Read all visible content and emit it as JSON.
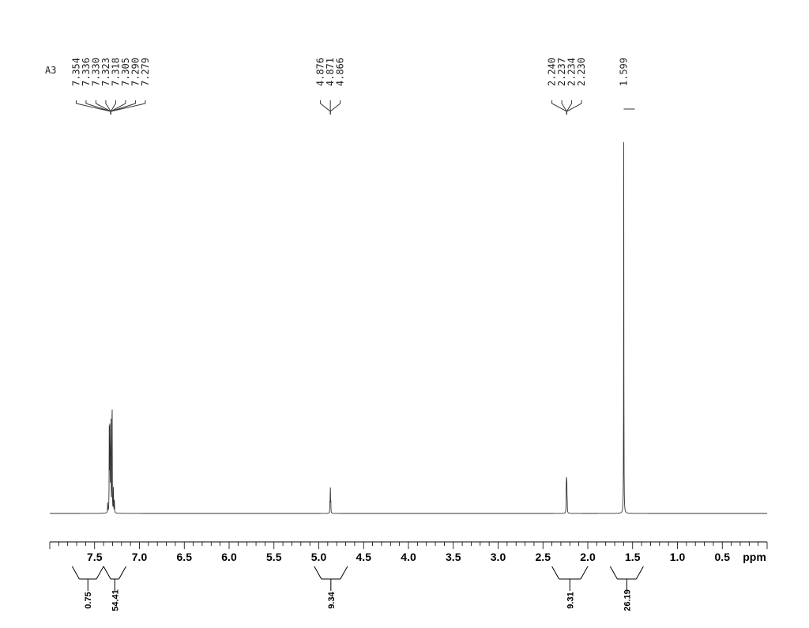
{
  "chart_data": {
    "type": "line",
    "title": "",
    "sample_label": "A3",
    "xlabel": "ppm",
    "xlim": [
      8.0,
      0.0
    ],
    "x_reversed": true,
    "grid": false,
    "x_ticks": [
      "7.5",
      "7.0",
      "6.5",
      "6.0",
      "5.5",
      "5.0",
      "4.5",
      "4.0",
      "3.5",
      "3.0",
      "2.5",
      "2.0",
      "1.5",
      "1.0",
      "0.5"
    ],
    "x_tick_values": [
      7.5,
      7.0,
      6.5,
      6.0,
      5.5,
      5.0,
      4.5,
      4.0,
      3.5,
      3.0,
      2.5,
      2.0,
      1.5,
      1.0,
      0.5
    ],
    "peaks": [
      {
        "ppm": 7.354,
        "height": 0.03
      },
      {
        "ppm": 7.336,
        "height": 0.32
      },
      {
        "ppm": 7.33,
        "height": 0.22
      },
      {
        "ppm": 7.323,
        "height": 0.18
      },
      {
        "ppm": 7.318,
        "height": 0.3
      },
      {
        "ppm": 7.305,
        "height": 0.4
      },
      {
        "ppm": 7.29,
        "height": 0.08
      },
      {
        "ppm": 7.279,
        "height": 0.04
      },
      {
        "ppm": 4.876,
        "height": 0.03
      },
      {
        "ppm": 4.871,
        "height": 0.09
      },
      {
        "ppm": 4.866,
        "height": 0.03
      },
      {
        "ppm": 2.24,
        "height": 0.06
      },
      {
        "ppm": 2.237,
        "height": 0.09
      },
      {
        "ppm": 2.234,
        "height": 0.07
      },
      {
        "ppm": 2.23,
        "height": 0.04
      },
      {
        "ppm": 1.599,
        "height": 1.0
      }
    ],
    "peak_label_groups": [
      {
        "ppm": 7.32,
        "labels": [
          "7.354",
          "7.336",
          "7.330",
          "7.323",
          "7.318",
          "7.305",
          "7.290",
          "7.279"
        ]
      },
      {
        "ppm": 4.871,
        "labels": [
          "4.876",
          "4.871",
          "4.866"
        ]
      },
      {
        "ppm": 2.235,
        "labels": [
          "2.240",
          "2.237",
          "2.234",
          "2.230"
        ]
      },
      {
        "ppm": 1.599,
        "labels": [
          "1.599"
        ]
      }
    ],
    "integrals": [
      {
        "from": 7.75,
        "to": 7.4,
        "value": "0.75"
      },
      {
        "from": 7.4,
        "to": 7.15,
        "value": "54.41"
      },
      {
        "from": 5.05,
        "to": 4.68,
        "value": "9.34"
      },
      {
        "from": 2.4,
        "to": 2.0,
        "value": "9.31"
      },
      {
        "from": 1.75,
        "to": 1.38,
        "value": "26.19"
      }
    ],
    "colors": {
      "trace": "#333333",
      "axis": "#000000"
    }
  }
}
